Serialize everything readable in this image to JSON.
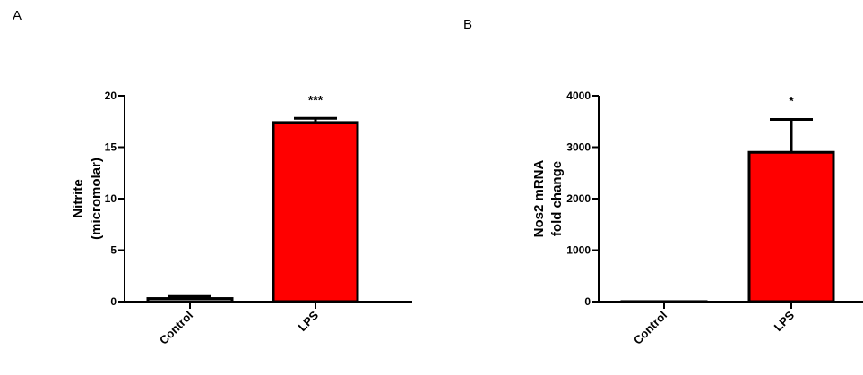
{
  "chart_data": [
    {
      "type": "bar",
      "panel": "A",
      "categories": [
        "Control",
        "LPS"
      ],
      "values": [
        0.3,
        17.4
      ],
      "errors": [
        0.2,
        0.4
      ],
      "significance": [
        "",
        "***"
      ],
      "ylabel_lines": [
        "Nitrite",
        "(micromolar)"
      ],
      "xlabel": "",
      "ylim": [
        0,
        20
      ],
      "yticks": [
        0,
        5,
        10,
        15,
        20
      ],
      "bar_colors": [
        "#ffffff",
        "#ff0000"
      ],
      "grid": false,
      "legend": "none"
    },
    {
      "type": "bar",
      "panel": "B",
      "categories": [
        "Control",
        "LPS"
      ],
      "values": [
        1,
        2900
      ],
      "errors": [
        0,
        640
      ],
      "significance": [
        "",
        "*"
      ],
      "ylabel_lines": [
        "Nos2 mRNA",
        "fold change"
      ],
      "xlabel": "",
      "ylim": [
        0,
        4000
      ],
      "yticks": [
        0,
        1000,
        2000,
        3000,
        4000
      ],
      "bar_colors": [
        "#ffffff",
        "#ff0000"
      ],
      "grid": false,
      "legend": "none"
    }
  ]
}
